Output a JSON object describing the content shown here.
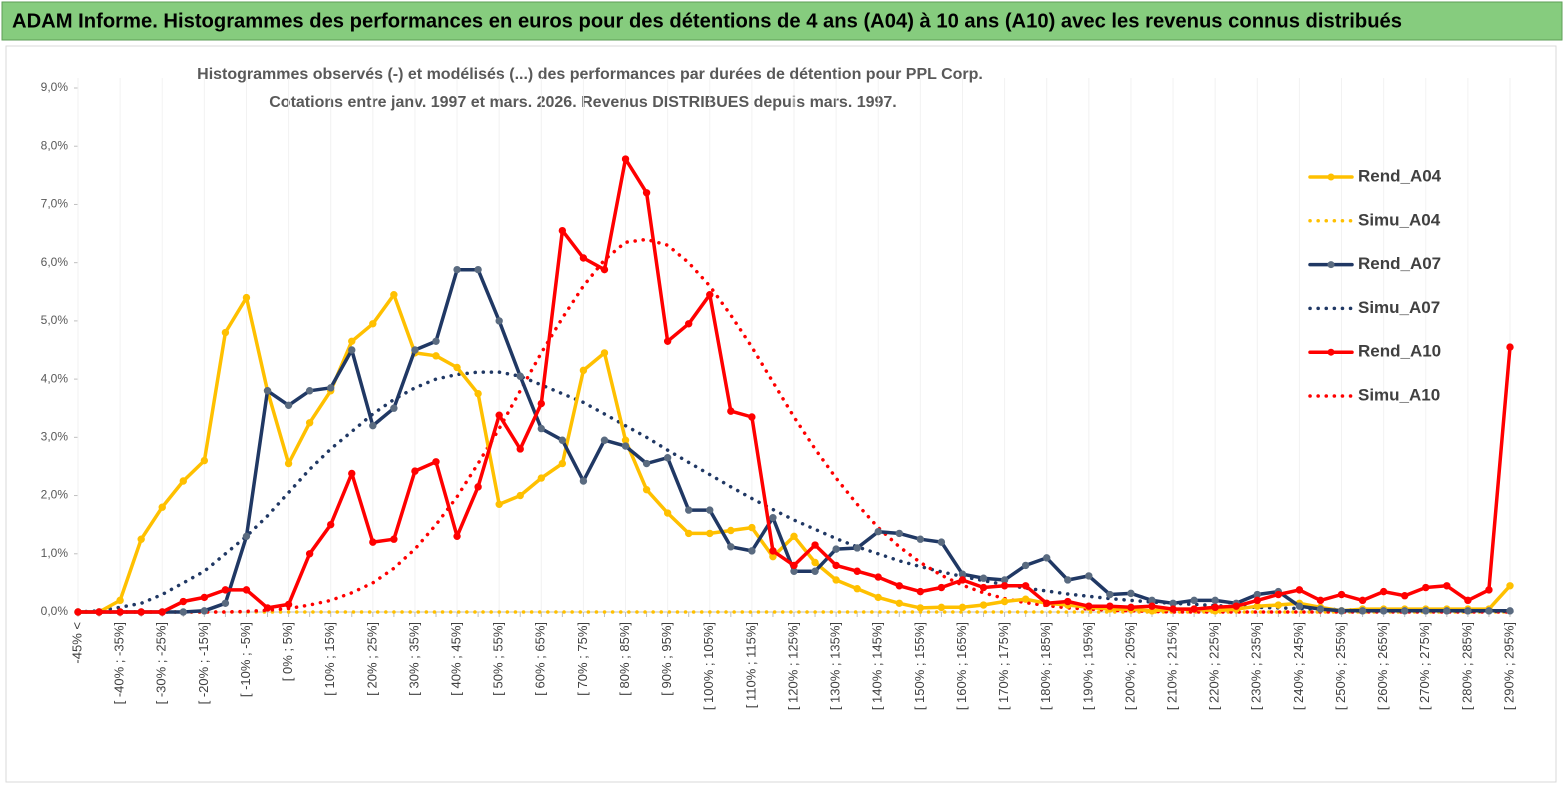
{
  "header": {
    "title": "ADAM Informe. Histogrammes des performances en euros pour des détentions de 4 ans (A04) à 10 ans (A10) avec les revenus connus distribués"
  },
  "chart_data": {
    "type": "line",
    "title": "Histogrammes observés (-) et modélisés (...) des performances par durées de détention pour PPL Corp.",
    "subtitle": "Cotations entre janv. 1997 et mars. 2026. Revenus DISTRIBUES depuis mars. 1997.",
    "categories": [
      "-45% <",
      null,
      "[ -40% ; -35%]",
      null,
      "[ -30% ; -25%]",
      null,
      "[ -20% ; -15%]",
      null,
      "[ -10% ; -5%]",
      null,
      "[ 0% ; 5%]",
      null,
      "[ 10% ; 15%]",
      null,
      "[ 20% ; 25%]",
      null,
      "[ 30% ; 35%]",
      null,
      "[ 40% ; 45%]",
      null,
      "[ 50% ; 55%]",
      null,
      "[ 60% ; 65%]",
      null,
      "[ 70% ; 75%]",
      null,
      "[ 80% ; 85%]",
      null,
      "[ 90% ; 95%]",
      null,
      "[ 100% ; 105%]",
      null,
      "[ 110% ; 115%]",
      null,
      "[ 120% ; 125%]",
      null,
      "[ 130% ; 135%]",
      null,
      "[ 140% ; 145%]",
      null,
      "[ 150% ; 155%]",
      null,
      "[ 160% ; 165%]",
      null,
      "[ 170% ; 175%]",
      null,
      "[ 180% ; 185%]",
      null,
      "[ 190% ; 195%]",
      null,
      "[ 200% ; 205%]",
      null,
      "[ 210% ; 215%]",
      null,
      "[ 220% ; 225%]",
      null,
      "[ 230% ; 235%]",
      null,
      "[ 240% ; 245%]",
      null,
      "[ 250% ; 255%]",
      null,
      "[ 260% ; 265%]",
      null,
      "[ 270% ; 275%]",
      null,
      "[ 280% ; 285%]",
      null,
      "[ 290% ; 295%]"
    ],
    "series": [
      {
        "name": "Rend_A04",
        "color": "#FFC000",
        "style": "solid",
        "markers": true,
        "marker_color": "#FFC000",
        "values": [
          0,
          0,
          0.2,
          1.25,
          1.8,
          2.25,
          2.6,
          4.8,
          5.4,
          3.8,
          2.55,
          3.25,
          3.8,
          4.65,
          4.95,
          5.45,
          4.45,
          4.4,
          4.2,
          3.75,
          1.85,
          2.0,
          2.3,
          2.55,
          4.15,
          4.45,
          2.95,
          2.1,
          1.7,
          1.35,
          1.35,
          1.4,
          1.45,
          0.95,
          1.3,
          0.85,
          0.55,
          0.4,
          0.25,
          0.15,
          0.07,
          0.08,
          0.08,
          0.12,
          0.18,
          0.22,
          0.15,
          0.12,
          0.08,
          0.05,
          0.05,
          0.02,
          0.05,
          0.05,
          0.02,
          0.05,
          0.1,
          0.12,
          0.15,
          0.08,
          0.02,
          0.05,
          0.05,
          0.05,
          0.05,
          0.05,
          0.05,
          0.05,
          0.45
        ]
      },
      {
        "name": "Simu_A04",
        "color": "#FFC000",
        "style": "dotted",
        "markers": false,
        "values": [
          0,
          0,
          0,
          0,
          0,
          0,
          0,
          0,
          0,
          0,
          0,
          0,
          0,
          0,
          0,
          0,
          0,
          0,
          0,
          0,
          0,
          0,
          0,
          0,
          0,
          0,
          0,
          0,
          0,
          0,
          0,
          0,
          0,
          0,
          0,
          0,
          0,
          0,
          0,
          0,
          0,
          0,
          0,
          0,
          0,
          0,
          0,
          0,
          0,
          0,
          0,
          0,
          0,
          0,
          0,
          0,
          0,
          0,
          0,
          0,
          0,
          0,
          0,
          0,
          0,
          0,
          0,
          0,
          0
        ]
      },
      {
        "name": "Rend_A07",
        "color": "#203864",
        "style": "solid",
        "markers": true,
        "marker_color": "#5A6B80",
        "values": [
          0,
          0,
          0,
          0,
          0,
          0,
          0.02,
          0.15,
          1.3,
          3.8,
          3.55,
          3.8,
          3.85,
          4.5,
          3.2,
          3.5,
          4.5,
          4.65,
          5.88,
          5.88,
          5.0,
          4.05,
          3.15,
          2.95,
          2.25,
          2.95,
          2.85,
          2.55,
          2.65,
          1.75,
          1.75,
          1.12,
          1.05,
          1.62,
          0.7,
          0.7,
          1.08,
          1.1,
          1.38,
          1.35,
          1.25,
          1.2,
          0.65,
          0.58,
          0.55,
          0.8,
          0.93,
          0.55,
          0.62,
          0.3,
          0.32,
          0.2,
          0.15,
          0.2,
          0.2,
          0.15,
          0.3,
          0.35,
          0.1,
          0.05,
          0.02,
          0.02,
          0.02,
          0.02,
          0.02,
          0.02,
          0.02,
          0.02,
          0.02
        ]
      },
      {
        "name": "Simu_A07",
        "color": "#203864",
        "style": "dotted",
        "markers": false,
        "values": [
          0,
          0.02,
          0.08,
          0.15,
          0.3,
          0.5,
          0.7,
          1.0,
          1.3,
          1.65,
          2.05,
          2.45,
          2.8,
          3.1,
          3.4,
          3.65,
          3.85,
          4.0,
          4.08,
          4.12,
          4.12,
          4.05,
          3.9,
          3.75,
          3.6,
          3.4,
          3.2,
          3.0,
          2.78,
          2.57,
          2.36,
          2.15,
          1.95,
          1.76,
          1.58,
          1.42,
          1.26,
          1.12,
          1.0,
          0.88,
          0.78,
          0.69,
          0.61,
          0.54,
          0.47,
          0.41,
          0.36,
          0.31,
          0.27,
          0.23,
          0.2,
          0.17,
          0.15,
          0.13,
          0.11,
          0.09,
          0.08,
          0.07,
          0.06,
          0.05,
          0.04,
          0.03,
          0.03,
          0.02,
          0.02,
          0.02,
          0.01,
          0.01,
          0.01
        ]
      },
      {
        "name": "Rend_A10",
        "color": "#FF0000",
        "style": "solid",
        "markers": true,
        "marker_color": "#FF0000",
        "values": [
          0,
          0,
          0,
          0,
          0,
          0.18,
          0.25,
          0.38,
          0.38,
          0.07,
          0.13,
          1.0,
          1.5,
          2.38,
          1.2,
          1.25,
          2.42,
          2.58,
          1.3,
          2.15,
          3.38,
          2.8,
          3.58,
          6.55,
          6.08,
          5.88,
          7.78,
          7.2,
          4.65,
          4.95,
          5.45,
          3.45,
          3.35,
          1.05,
          0.8,
          1.15,
          0.8,
          0.7,
          0.6,
          0.45,
          0.35,
          0.42,
          0.55,
          0.42,
          0.45,
          0.45,
          0.15,
          0.18,
          0.1,
          0.1,
          0.08,
          0.1,
          0.05,
          0.05,
          0.08,
          0.1,
          0.2,
          0.3,
          0.38,
          0.2,
          0.3,
          0.2,
          0.35,
          0.28,
          0.42,
          0.45,
          0.2,
          0.38,
          4.55
        ]
      },
      {
        "name": "Simu_A10",
        "color": "#FF0000",
        "style": "dotted",
        "markers": false,
        "values": [
          0,
          0,
          0,
          0,
          0,
          0,
          0,
          0,
          0.01,
          0.03,
          0.06,
          0.12,
          0.2,
          0.33,
          0.5,
          0.75,
          1.08,
          1.5,
          1.98,
          2.55,
          3.15,
          3.8,
          4.45,
          5.05,
          5.6,
          6.05,
          6.35,
          6.4,
          6.3,
          6.0,
          5.6,
          5.1,
          4.55,
          3.95,
          3.35,
          2.8,
          2.3,
          1.85,
          1.45,
          1.12,
          0.85,
          0.63,
          0.46,
          0.33,
          0.23,
          0.16,
          0.11,
          0.07,
          0.05,
          0.03,
          0.02,
          0.01,
          0,
          0,
          0,
          0,
          0,
          0,
          0,
          0,
          0,
          0,
          0,
          0,
          0,
          0,
          0,
          0,
          0
        ]
      }
    ],
    "ylim": [
      0,
      9
    ],
    "yticks": [
      {
        "value": 0,
        "label": "0,0%"
      },
      {
        "value": 1,
        "label": "1,0%"
      },
      {
        "value": 2,
        "label": "2,0%"
      },
      {
        "value": 3,
        "label": "3,0%"
      },
      {
        "value": 4,
        "label": "4,0%"
      },
      {
        "value": 5,
        "label": "5,0%"
      },
      {
        "value": 6,
        "label": "6,0%"
      },
      {
        "value": 7,
        "label": "7,0%"
      },
      {
        "value": 8,
        "label": "8,0%"
      },
      {
        "value": 9,
        "label": "9,0%"
      }
    ],
    "grid": false,
    "legend": "right"
  }
}
